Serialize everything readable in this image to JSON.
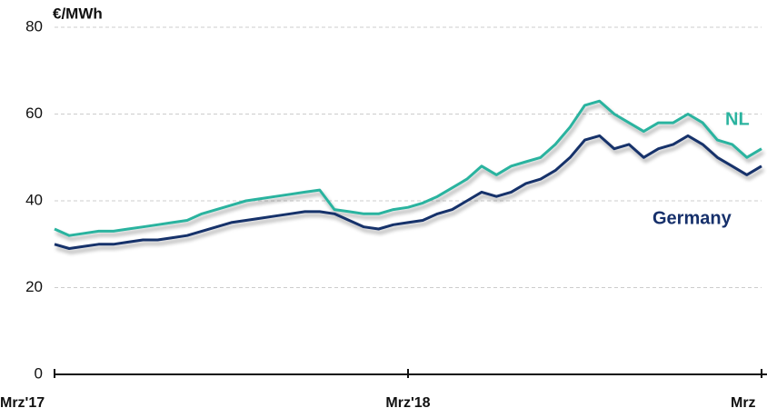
{
  "chart_data": {
    "type": "line",
    "y_label": "€/MWh",
    "categories": [
      "Mrz'17",
      null,
      null,
      null,
      null,
      null,
      null,
      null,
      null,
      null,
      null,
      null,
      null,
      null,
      null,
      null,
      null,
      null,
      null,
      null,
      null,
      null,
      null,
      null,
      "Mrz'18",
      null,
      null,
      null,
      null,
      null,
      null,
      null,
      null,
      null,
      null,
      null,
      null,
      null,
      null,
      null,
      null,
      null,
      null,
      null,
      null,
      null,
      null,
      null,
      "Mrz"
    ],
    "series": [
      {
        "name": "NL",
        "color": "#2bb39f",
        "values": [
          33.5,
          32,
          32.5,
          33,
          33,
          33.5,
          34,
          34.5,
          35,
          35.5,
          37,
          38,
          39,
          40,
          40.5,
          41,
          41.5,
          42,
          42.5,
          38,
          37.5,
          37,
          37,
          38,
          38.5,
          39.5,
          41,
          43,
          45,
          48,
          46,
          48,
          49,
          50,
          53,
          57,
          62,
          63,
          60,
          58,
          56,
          58,
          58,
          60,
          58,
          54,
          53,
          50,
          52
        ]
      },
      {
        "name": "Germany",
        "color": "#16306b",
        "values": [
          30,
          29,
          29.5,
          30,
          30,
          30.5,
          31,
          31,
          31.5,
          32,
          33,
          34,
          35,
          35.5,
          36,
          36.5,
          37,
          37.5,
          37.5,
          37,
          35.5,
          34,
          33.5,
          34.5,
          35,
          35.5,
          37,
          38,
          40,
          42,
          41,
          42,
          44,
          45,
          47,
          50,
          54,
          55,
          52,
          53,
          50,
          52,
          53,
          55,
          53,
          50,
          48,
          46,
          48
        ]
      }
    ],
    "ylim": [
      0,
      80
    ],
    "yticks": [
      0,
      20,
      40,
      60,
      80
    ],
    "grid": true
  }
}
